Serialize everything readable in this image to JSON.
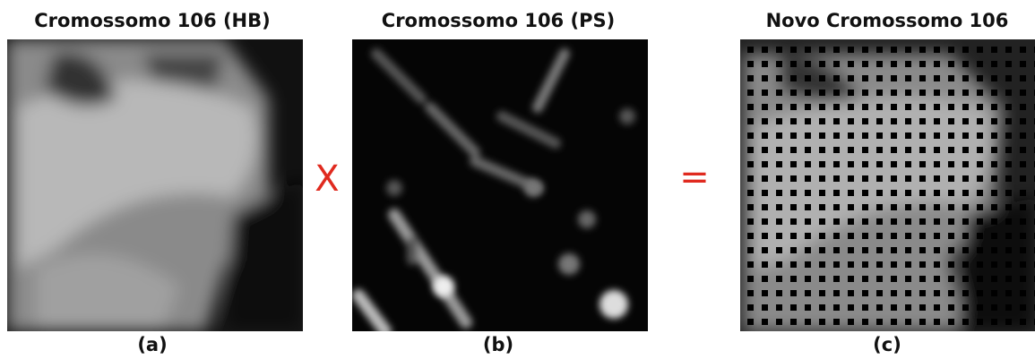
{
  "panels": [
    {
      "title": "Cromossomo 106 (HB)",
      "caption": "(a)"
    },
    {
      "title": "Cromossomo 106 (PS)",
      "caption": "(b)"
    },
    {
      "title": "Novo Cromossomo 106",
      "caption": "(c)"
    }
  ],
  "operators": [
    "X",
    "="
  ]
}
